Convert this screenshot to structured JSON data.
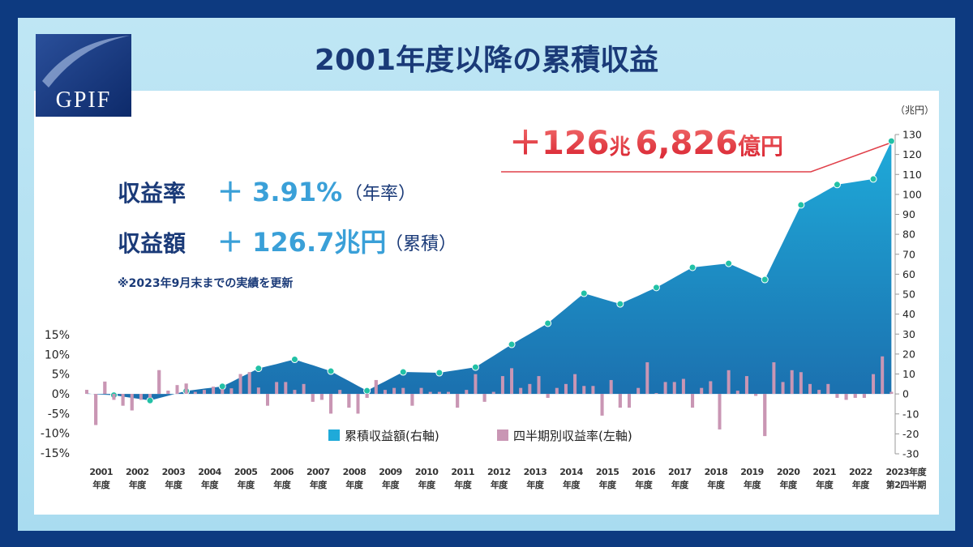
{
  "logo": "GPIF",
  "chart_data": {
    "type": "bar",
    "title": "2001年度以降の累積収益",
    "highlight": [
      "＋126",
      "兆",
      "6,826",
      "億円"
    ],
    "stats": [
      {
        "label": "収益率",
        "value": "＋ 3.91%",
        "note": "（年率）"
      },
      {
        "label": "収益額",
        "value": "＋ 126.7兆円",
        "note": "（累積）"
      }
    ],
    "note": "※2023年9月末までの実績を更新",
    "y2_unit": "（兆円）",
    "legend": "bottom",
    "categories": [
      null,
      "2001年度",
      null,
      null,
      null,
      "2002年度",
      null,
      null,
      null,
      "2003年度",
      null,
      null,
      null,
      "2004年度",
      null,
      null,
      null,
      "2005年度",
      null,
      null,
      null,
      "2006年度",
      null,
      null,
      null,
      "2007年度",
      null,
      null,
      null,
      "2008年度",
      null,
      null,
      null,
      "2009年度",
      null,
      null,
      null,
      "2010年度",
      null,
      null,
      null,
      "2011年度",
      null,
      null,
      null,
      "2012年度",
      null,
      null,
      null,
      "2013年度",
      null,
      null,
      null,
      "2014年度",
      null,
      null,
      null,
      "2015年度",
      null,
      null,
      null,
      "2016年度",
      null,
      null,
      null,
      "2017年度",
      null,
      null,
      null,
      "2018年度",
      null,
      null,
      null,
      "2019年度",
      null,
      null,
      null,
      "2020年度",
      null,
      null,
      null,
      "2021年度",
      null,
      null,
      null,
      "2022年度",
      null,
      null,
      null,
      "2023年度第2四半期"
    ],
    "series": [
      {
        "name": "累積収益額(右軸)",
        "type": "area",
        "axis": "y2",
        "color": "#1faad9",
        "marker_color": "#22c1a6",
        "values": [
          0.3,
          -0.2,
          -0.4,
          -0.6,
          -1.3,
          -2.0,
          -2.6,
          -3.3,
          -2.1,
          -0.9,
          0.3,
          1.5,
          2.1,
          2.7,
          3.2,
          3.8,
          6.0,
          8.3,
          10.5,
          12.8,
          13.9,
          15.0,
          16.2,
          17.3,
          15.8,
          14.4,
          12.9,
          11.4,
          8.9,
          6.5,
          4.0,
          1.6,
          4.0,
          6.3,
          8.7,
          11.0,
          10.9,
          10.8,
          10.7,
          10.6,
          11.3,
          12.0,
          12.7,
          13.4,
          16.3,
          19.1,
          22.0,
          24.8,
          27.5,
          30.1,
          32.8,
          35.4,
          39.2,
          42.9,
          46.7,
          50.4,
          49.1,
          47.7,
          46.4,
          45.1,
          47.2,
          49.2,
          51.3,
          53.3,
          55.8,
          58.4,
          60.9,
          63.4,
          63.9,
          64.4,
          64.9,
          65.4,
          63.4,
          61.4,
          59.3,
          57.3,
          66.7,
          76.0,
          85.4,
          94.7,
          97.3,
          99.8,
          102.4,
          104.9,
          105.6,
          106.3,
          107.0,
          107.7,
          117.2,
          126.7
        ]
      },
      {
        "name": "四半期別収益率(左軸)",
        "type": "bar",
        "color": "#c996b4",
        "values": [
          1.0,
          -7.9,
          3.1,
          -1.5,
          -3.0,
          -4.2,
          -1.5,
          -1.0,
          6.0,
          0.8,
          2.2,
          2.6,
          0.5,
          1.0,
          1.8,
          1.2,
          1.4,
          5.0,
          5.5,
          1.6,
          -3.0,
          3.0,
          3.0,
          1.0,
          2.5,
          -2.0,
          -1.5,
          -5.0,
          1.0,
          -3.5,
          -5.0,
          -1.0,
          3.5,
          1.0,
          1.5,
          1.5,
          -3.0,
          1.5,
          0.5,
          0.5,
          0.5,
          -3.5,
          1.0,
          5.0,
          -2.0,
          0.5,
          4.5,
          6.5,
          1.5,
          2.5,
          4.5,
          -1.0,
          1.5,
          2.5,
          5.0,
          2.0,
          2.0,
          -5.5,
          3.5,
          -3.5,
          -3.5,
          1.5,
          8.0,
          0.2,
          3.0,
          3.0,
          3.8,
          -3.5,
          1.5,
          3.2,
          -9.0,
          6.0,
          0.8,
          4.5,
          -0.5,
          -10.7,
          8.0,
          3.0,
          6.0,
          5.5,
          2.5,
          1.0,
          2.5,
          -1.0,
          -1.5,
          -1.0,
          -1.0,
          5.0,
          9.5,
          0.5
        ]
      }
    ],
    "ylim": [
      -15,
      15
    ],
    "yticks": [
      {
        "value": -15,
        "label": "-15%"
      },
      {
        "value": -10,
        "label": "-10%"
      },
      {
        "value": -5,
        "label": "-5%"
      },
      {
        "value": 0,
        "label": "0%"
      },
      {
        "value": 5,
        "label": "5%"
      },
      {
        "value": 10,
        "label": "10%"
      },
      {
        "value": 15,
        "label": "15%"
      }
    ],
    "y2lim": [
      -30,
      130
    ],
    "y2ticks": [
      -30,
      -20,
      -10,
      0,
      10,
      20,
      30,
      40,
      50,
      60,
      70,
      80,
      90,
      100,
      110,
      120,
      130
    ]
  }
}
